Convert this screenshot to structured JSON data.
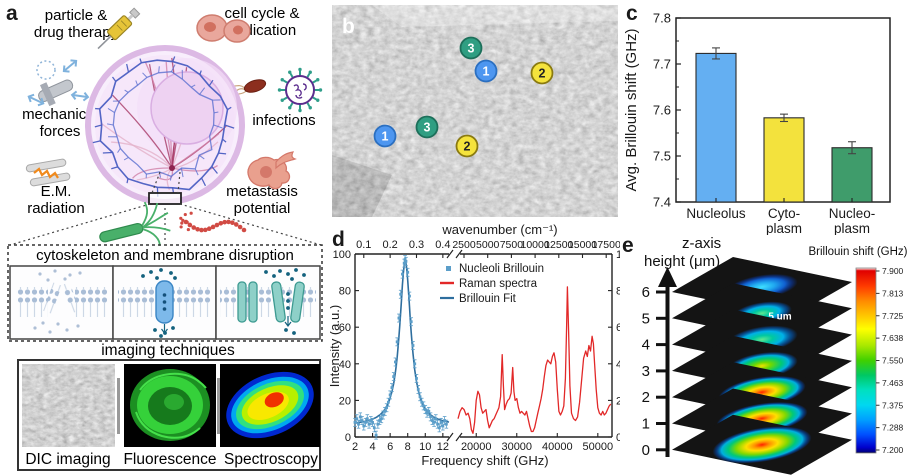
{
  "panels": {
    "a": {
      "label": "a",
      "annotations": {
        "particle": [
          "particle &",
          "drug therapy"
        ],
        "cell_cycle": [
          "cell cycle &",
          "replication"
        ],
        "mechanical": [
          "mechanical",
          "forces"
        ],
        "infections": "infections",
        "em": [
          "E.M.",
          "radiation"
        ],
        "metastasis": [
          "metastasis",
          "potential"
        ]
      },
      "disruption_title": "cytoskeleton and membrane disruption",
      "imaging_title": "imaging techniques",
      "imaging_labels": [
        "DIC imaging",
        "Fluorescence",
        "Spectroscopy"
      ]
    },
    "b": {
      "label": "b",
      "markers": [
        {
          "n": "3",
          "x": 139,
          "y": 43,
          "color": "#2f9e82",
          "border": "#1d6f5a",
          "text": "#ffffff"
        },
        {
          "n": "1",
          "x": 154,
          "y": 66,
          "color": "#4d96f0",
          "border": "#2b6fc0",
          "text": "#ffffff"
        },
        {
          "n": "2",
          "x": 210,
          "y": 68,
          "color": "#f5e33c",
          "border": "#8a7a10",
          "text": "#222222"
        },
        {
          "n": "1",
          "x": 53,
          "y": 131,
          "color": "#4d96f0",
          "border": "#2b6fc0",
          "text": "#ffffff"
        },
        {
          "n": "3",
          "x": 95,
          "y": 122,
          "color": "#2f9e82",
          "border": "#1d6f5a",
          "text": "#ffffff"
        },
        {
          "n": "2",
          "x": 135,
          "y": 141,
          "color": "#f5e33c",
          "border": "#8a7a10",
          "text": "#222222"
        }
      ]
    },
    "c": {
      "label": "c"
    },
    "d": {
      "label": "d"
    },
    "e": {
      "label": "e",
      "zaxis_label": [
        "z-axis",
        "height (μm)"
      ],
      "zticks": [
        "6",
        "5",
        "4",
        "3",
        "2",
        "1",
        "0"
      ],
      "scalebar_label": "5 μm",
      "colorbar_title": "Brillouin shift (GHz)",
      "colorbar_ticks": [
        "7.900",
        "7.813",
        "7.725",
        "7.638",
        "7.550",
        "7.463",
        "7.375",
        "7.288",
        "7.200"
      ],
      "num_slices": 7
    }
  },
  "chart_data": [
    {
      "panel": "c",
      "type": "bar",
      "title": "",
      "ylabel": "Avg. Brillouin shift (GHz)",
      "ylim": [
        7.4,
        7.8
      ],
      "yticks": [
        7.4,
        7.5,
        7.6,
        7.7,
        7.8
      ],
      "categories": [
        [
          "Nucleolus"
        ],
        [
          "Cyto-",
          "plasm"
        ],
        [
          "Nucleo-",
          "plasm"
        ]
      ],
      "values": [
        7.723,
        7.583,
        7.518
      ],
      "errors": [
        0.012,
        0.008,
        0.013
      ],
      "bar_colors": [
        "#64aff2",
        "#f3e23d",
        "#3f9c6b"
      ]
    },
    {
      "panel": "d",
      "type": "line",
      "xlabel": "Frequency shift (GHz)",
      "top_xlabel": "wavenumber (cm⁻¹)",
      "ylabel": "Intensity (a.u.)",
      "ylim": [
        0,
        100
      ],
      "yticks": [
        0,
        20,
        40,
        60,
        80,
        100
      ],
      "left_segment": {
        "xlim": [
          2,
          12.7
        ],
        "xticks": [
          2,
          4,
          6,
          8,
          10,
          12
        ],
        "top_ticks": [
          "0.1",
          "0.2",
          "0.3",
          "0.4"
        ],
        "top_tick_freq": [
          3,
          6,
          9,
          12
        ]
      },
      "right_segment": {
        "xlim": [
          15500,
          53500
        ],
        "xticks": [
          20000,
          30000,
          40000,
          50000
        ],
        "top_ticks": [
          "2500",
          "5000",
          "7500",
          "10000",
          "12500",
          "15000",
          "17500"
        ]
      },
      "legend": [
        "Nucleoli Brillouin",
        "Raman spectra",
        "Brillouin Fit"
      ],
      "colors": {
        "scatter": "#5b9ec9",
        "raman": "#e22828",
        "fit": "#2e6e9e"
      },
      "brillouin_fit": {
        "center": 7.72,
        "hwhm": 0.78,
        "amplitude": 90,
        "baseline": 6
      },
      "brillouin_points": [
        [
          2,
          8
        ],
        [
          2.2,
          10
        ],
        [
          2.4,
          7
        ],
        [
          2.6,
          11
        ],
        [
          2.8,
          9
        ],
        [
          3,
          6
        ],
        [
          3.2,
          8
        ],
        [
          3.4,
          10
        ],
        [
          3.6,
          7
        ],
        [
          3.8,
          9
        ],
        [
          4,
          8
        ],
        [
          4.2,
          5
        ],
        [
          4.4,
          1
        ],
        [
          4.6,
          7
        ],
        [
          4.8,
          9
        ],
        [
          5,
          10
        ],
        [
          5.2,
          12
        ],
        [
          5.4,
          14
        ],
        [
          5.6,
          16
        ],
        [
          5.8,
          19
        ],
        [
          6,
          23
        ],
        [
          6.2,
          27
        ],
        [
          6.4,
          33
        ],
        [
          6.6,
          41
        ],
        [
          6.8,
          52
        ],
        [
          7,
          65
        ],
        [
          7.2,
          78
        ],
        [
          7.4,
          89
        ],
        [
          7.6,
          95
        ],
        [
          7.7,
          97
        ],
        [
          7.8,
          96
        ],
        [
          8,
          90
        ],
        [
          8.2,
          77
        ],
        [
          8.4,
          63
        ],
        [
          8.6,
          50
        ],
        [
          8.8,
          40
        ],
        [
          9,
          32
        ],
        [
          9.2,
          26
        ],
        [
          9.4,
          22
        ],
        [
          9.6,
          19
        ],
        [
          9.8,
          17
        ],
        [
          10,
          15
        ],
        [
          10.2,
          13
        ],
        [
          10.4,
          14
        ],
        [
          10.6,
          11
        ],
        [
          10.8,
          9
        ],
        [
          11,
          8
        ],
        [
          11.2,
          10
        ],
        [
          11.4,
          7
        ],
        [
          11.6,
          5
        ],
        [
          11.8,
          8
        ],
        [
          12,
          6
        ],
        [
          12.2,
          9
        ],
        [
          12.4,
          7
        ]
      ],
      "raman_points": [
        [
          15500,
          10
        ],
        [
          16000,
          14
        ],
        [
          16500,
          16
        ],
        [
          17000,
          15
        ],
        [
          17500,
          12
        ],
        [
          18000,
          13
        ],
        [
          18400,
          10
        ],
        [
          18800,
          4
        ],
        [
          19200,
          2
        ],
        [
          19600,
          8
        ],
        [
          20000,
          20
        ],
        [
          20400,
          25
        ],
        [
          20800,
          23
        ],
        [
          21200,
          16
        ],
        [
          21600,
          13
        ],
        [
          22000,
          14
        ],
        [
          22400,
          15
        ],
        [
          22800,
          9
        ],
        [
          23200,
          5
        ],
        [
          23600,
          7
        ],
        [
          24000,
          9
        ],
        [
          24400,
          10
        ],
        [
          24800,
          12
        ],
        [
          25200,
          14
        ],
        [
          25600,
          16
        ],
        [
          26000,
          22
        ],
        [
          26400,
          45
        ],
        [
          26700,
          28
        ],
        [
          27000,
          15
        ],
        [
          27400,
          18
        ],
        [
          27800,
          20
        ],
        [
          28200,
          21
        ],
        [
          28600,
          24
        ],
        [
          29000,
          38
        ],
        [
          29300,
          25
        ],
        [
          29600,
          20
        ],
        [
          30000,
          21
        ],
        [
          30400,
          16
        ],
        [
          30800,
          13
        ],
        [
          31200,
          14
        ],
        [
          31600,
          13
        ],
        [
          32000,
          12
        ],
        [
          32400,
          14
        ],
        [
          32800,
          10
        ],
        [
          33200,
          6
        ],
        [
          33600,
          3
        ],
        [
          34000,
          3
        ],
        [
          34400,
          5
        ],
        [
          34800,
          9
        ],
        [
          35200,
          13
        ],
        [
          35600,
          17
        ],
        [
          36000,
          21
        ],
        [
          36400,
          26
        ],
        [
          36800,
          33
        ],
        [
          37200,
          39
        ],
        [
          37600,
          42
        ],
        [
          38000,
          41
        ],
        [
          38400,
          40
        ],
        [
          38800,
          44
        ],
        [
          39200,
          46
        ],
        [
          39600,
          41
        ],
        [
          40000,
          26
        ],
        [
          40400,
          14
        ],
        [
          40800,
          12
        ],
        [
          41200,
          14
        ],
        [
          41600,
          17
        ],
        [
          42000,
          32
        ],
        [
          42300,
          60
        ],
        [
          42500,
          82
        ],
        [
          42800,
          58
        ],
        [
          43100,
          28
        ],
        [
          43500,
          13
        ],
        [
          44000,
          10
        ],
        [
          44500,
          9
        ],
        [
          45000,
          11
        ],
        [
          45500,
          19
        ],
        [
          46000,
          31
        ],
        [
          46500,
          43
        ],
        [
          47000,
          47
        ],
        [
          47400,
          44
        ],
        [
          47800,
          50
        ],
        [
          48200,
          47
        ],
        [
          48600,
          55
        ],
        [
          48900,
          51
        ],
        [
          49200,
          40
        ],
        [
          49600,
          26
        ],
        [
          50000,
          16
        ],
        [
          50400,
          13
        ],
        [
          50800,
          12
        ],
        [
          51200,
          14
        ],
        [
          51600,
          12
        ],
        [
          52000,
          13
        ],
        [
          52400,
          15
        ],
        [
          52800,
          17
        ],
        [
          53200,
          18
        ]
      ]
    }
  ]
}
